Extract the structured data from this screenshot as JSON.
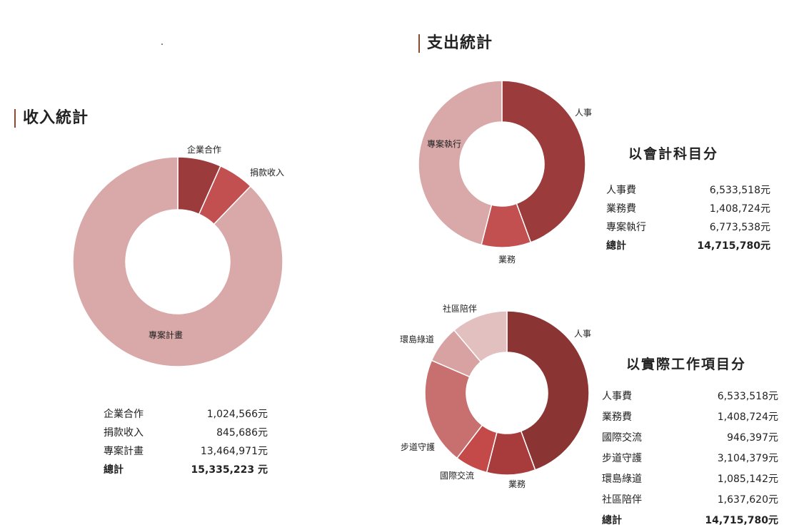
{
  "headings": {
    "income": "收入統計",
    "expense": "支出統計"
  },
  "tables": {
    "income": {
      "rows": [
        {
          "label": "企業合作",
          "value": "1,024,566元"
        },
        {
          "label": "捐款收入",
          "value": "845,686元"
        },
        {
          "label": "專案計畫",
          "value": "13,464,971元"
        }
      ],
      "total": {
        "label": "總計",
        "value": "15,335,223 元"
      }
    },
    "by_account": {
      "title": "以會計科目分",
      "rows": [
        {
          "label": "人事費",
          "value": "6,533,518元"
        },
        {
          "label": "業務費",
          "value": "1,408,724元"
        },
        {
          "label": "專案執行",
          "value": "6,773,538元"
        }
      ],
      "total": {
        "label": "總計",
        "value": "14,715,780元"
      }
    },
    "by_work": {
      "title": "以實際工作項目分",
      "rows": [
        {
          "label": "人事費",
          "value": "6,533,518元"
        },
        {
          "label": "業務費",
          "value": "1,408,724元"
        },
        {
          "label": "國際交流",
          "value": "946,397元"
        },
        {
          "label": "步道守護",
          "value": "3,104,379元"
        },
        {
          "label": "環島綠道",
          "value": "1,085,142元"
        },
        {
          "label": "社區陪伴",
          "value": "1,637,620元"
        }
      ],
      "total": {
        "label": "總計",
        "value": "14,715,780元"
      }
    }
  },
  "chart_data": [
    {
      "type": "pie",
      "title": "收入統計",
      "categories": [
        "企業合作",
        "捐款收入",
        "專案計畫"
      ],
      "values": [
        1024566,
        845686,
        13464971
      ],
      "colors": [
        "#9b3b3b",
        "#c25050",
        "#d9a8a8"
      ]
    },
    {
      "type": "pie",
      "title": "以會計科目分",
      "categories": [
        "人事",
        "業務",
        "專案執行"
      ],
      "values": [
        6533518,
        1408724,
        6773538
      ],
      "colors": [
        "#9b3b3b",
        "#c25050",
        "#d9a8a8"
      ]
    },
    {
      "type": "pie",
      "title": "以實際工作項目分",
      "categories": [
        "人事",
        "業務",
        "國際交流",
        "步道守護",
        "環島綠道",
        "社區陪伴"
      ],
      "values": [
        6533518,
        1408724,
        946397,
        3104379,
        1085142,
        1637620
      ],
      "colors": [
        "#8b3434",
        "#a83c3c",
        "#c44a4a",
        "#c87070",
        "#d9a2a2",
        "#e2c0c0"
      ]
    }
  ]
}
